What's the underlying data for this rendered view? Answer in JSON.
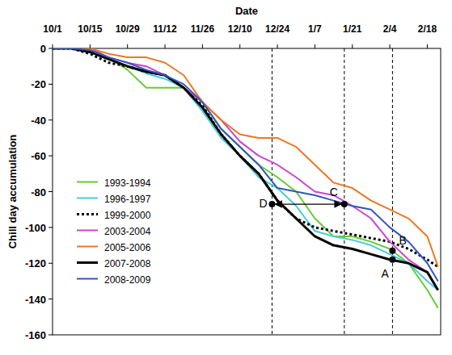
{
  "chart_data": {
    "type": "line",
    "x_title": "Date",
    "y_title": "Chill day accumulation",
    "x": [
      0,
      7,
      14,
      21,
      28,
      35,
      42,
      49,
      56,
      63,
      70,
      77,
      84,
      91,
      98,
      105,
      112,
      119,
      126,
      133,
      140,
      144
    ],
    "xlim": [
      0,
      145
    ],
    "xticks": [
      {
        "value": 0,
        "label": "10/1"
      },
      {
        "value": 14,
        "label": "10/15"
      },
      {
        "value": 28,
        "label": "10/29"
      },
      {
        "value": 42,
        "label": "11/12"
      },
      {
        "value": 56,
        "label": "11/26"
      },
      {
        "value": 70,
        "label": "12/10"
      },
      {
        "value": 84,
        "label": "12/24"
      },
      {
        "value": 98,
        "label": "1/7"
      },
      {
        "value": 112,
        "label": "1/21"
      },
      {
        "value": 126,
        "label": "2/4"
      },
      {
        "value": 140,
        "label": "2/18"
      }
    ],
    "ylim": [
      -160,
      0
    ],
    "yticks": [
      0,
      -20,
      -40,
      -60,
      -80,
      -100,
      -120,
      -140,
      -160
    ],
    "grid": false,
    "legend": "left",
    "series": [
      {
        "name": "1993-1994",
        "color": "#66cc33",
        "line_style": "solid",
        "values": [
          0,
          0,
          0,
          -5,
          -12,
          -22,
          -22,
          -22,
          -30,
          -45,
          -55,
          -65,
          -72,
          -80,
          -95,
          -105,
          -105,
          -108,
          -112,
          -120,
          -135,
          -145
        ]
      },
      {
        "name": "1996-1997",
        "color": "#44ccdd",
        "line_style": "solid",
        "values": [
          0,
          0,
          -2,
          -6,
          -10,
          -14,
          -17,
          -22,
          -35,
          -50,
          -60,
          -72,
          -78,
          -88,
          -102,
          -105,
          -107,
          -110,
          -115,
          -120,
          -130,
          -135
        ]
      },
      {
        "name": "1999-2000",
        "color": "#000000",
        "line_style": "dotted",
        "values": [
          0,
          0,
          -3,
          -8,
          -10,
          -13,
          -15,
          -22,
          -32,
          -48,
          -60,
          -70,
          -85,
          -95,
          -100,
          -102,
          -104,
          -106,
          -108,
          -112,
          -118,
          -122
        ]
      },
      {
        "name": "2003-2004",
        "color": "#cc44cc",
        "line_style": "solid",
        "values": [
          0,
          0,
          0,
          -5,
          -8,
          -10,
          -15,
          -22,
          -30,
          -40,
          -52,
          -60,
          -65,
          -72,
          -80,
          -82,
          -88,
          -95,
          -108,
          -118,
          -125,
          -135
        ]
      },
      {
        "name": "2005-2006",
        "color": "#ee7722",
        "line_style": "solid",
        "values": [
          0,
          0,
          0,
          -3,
          -5,
          -5,
          -8,
          -15,
          -30,
          -40,
          -48,
          -50,
          -50,
          -55,
          -65,
          -75,
          -78,
          -85,
          -90,
          -95,
          -105,
          -122
        ]
      },
      {
        "name": "2007-2008",
        "color": "#000000",
        "line_style": "solid",
        "values": [
          0,
          0,
          -2,
          -6,
          -10,
          -13,
          -15,
          -22,
          -33,
          -48,
          -60,
          -70,
          -85,
          -95,
          -105,
          -110,
          -112,
          -115,
          -118,
          -120,
          -125,
          -135
        ]
      },
      {
        "name": "2008-2009",
        "color": "#3355bb",
        "line_style": "solid",
        "values": [
          0,
          0,
          -1,
          -5,
          -8,
          -12,
          -15,
          -20,
          -30,
          -45,
          -55,
          -65,
          -78,
          -80,
          -82,
          -85,
          -88,
          -90,
          -100,
          -108,
          -120,
          -130
        ]
      }
    ],
    "vlines": [
      82,
      109,
      127
    ],
    "annotations": [
      {
        "label": "A",
        "x": 127,
        "y": -118
      },
      {
        "label": "B",
        "x": 127,
        "y": -113
      },
      {
        "label": "C",
        "x": 109,
        "y": -87
      },
      {
        "label": "D",
        "x": 82,
        "y": -87
      }
    ]
  }
}
